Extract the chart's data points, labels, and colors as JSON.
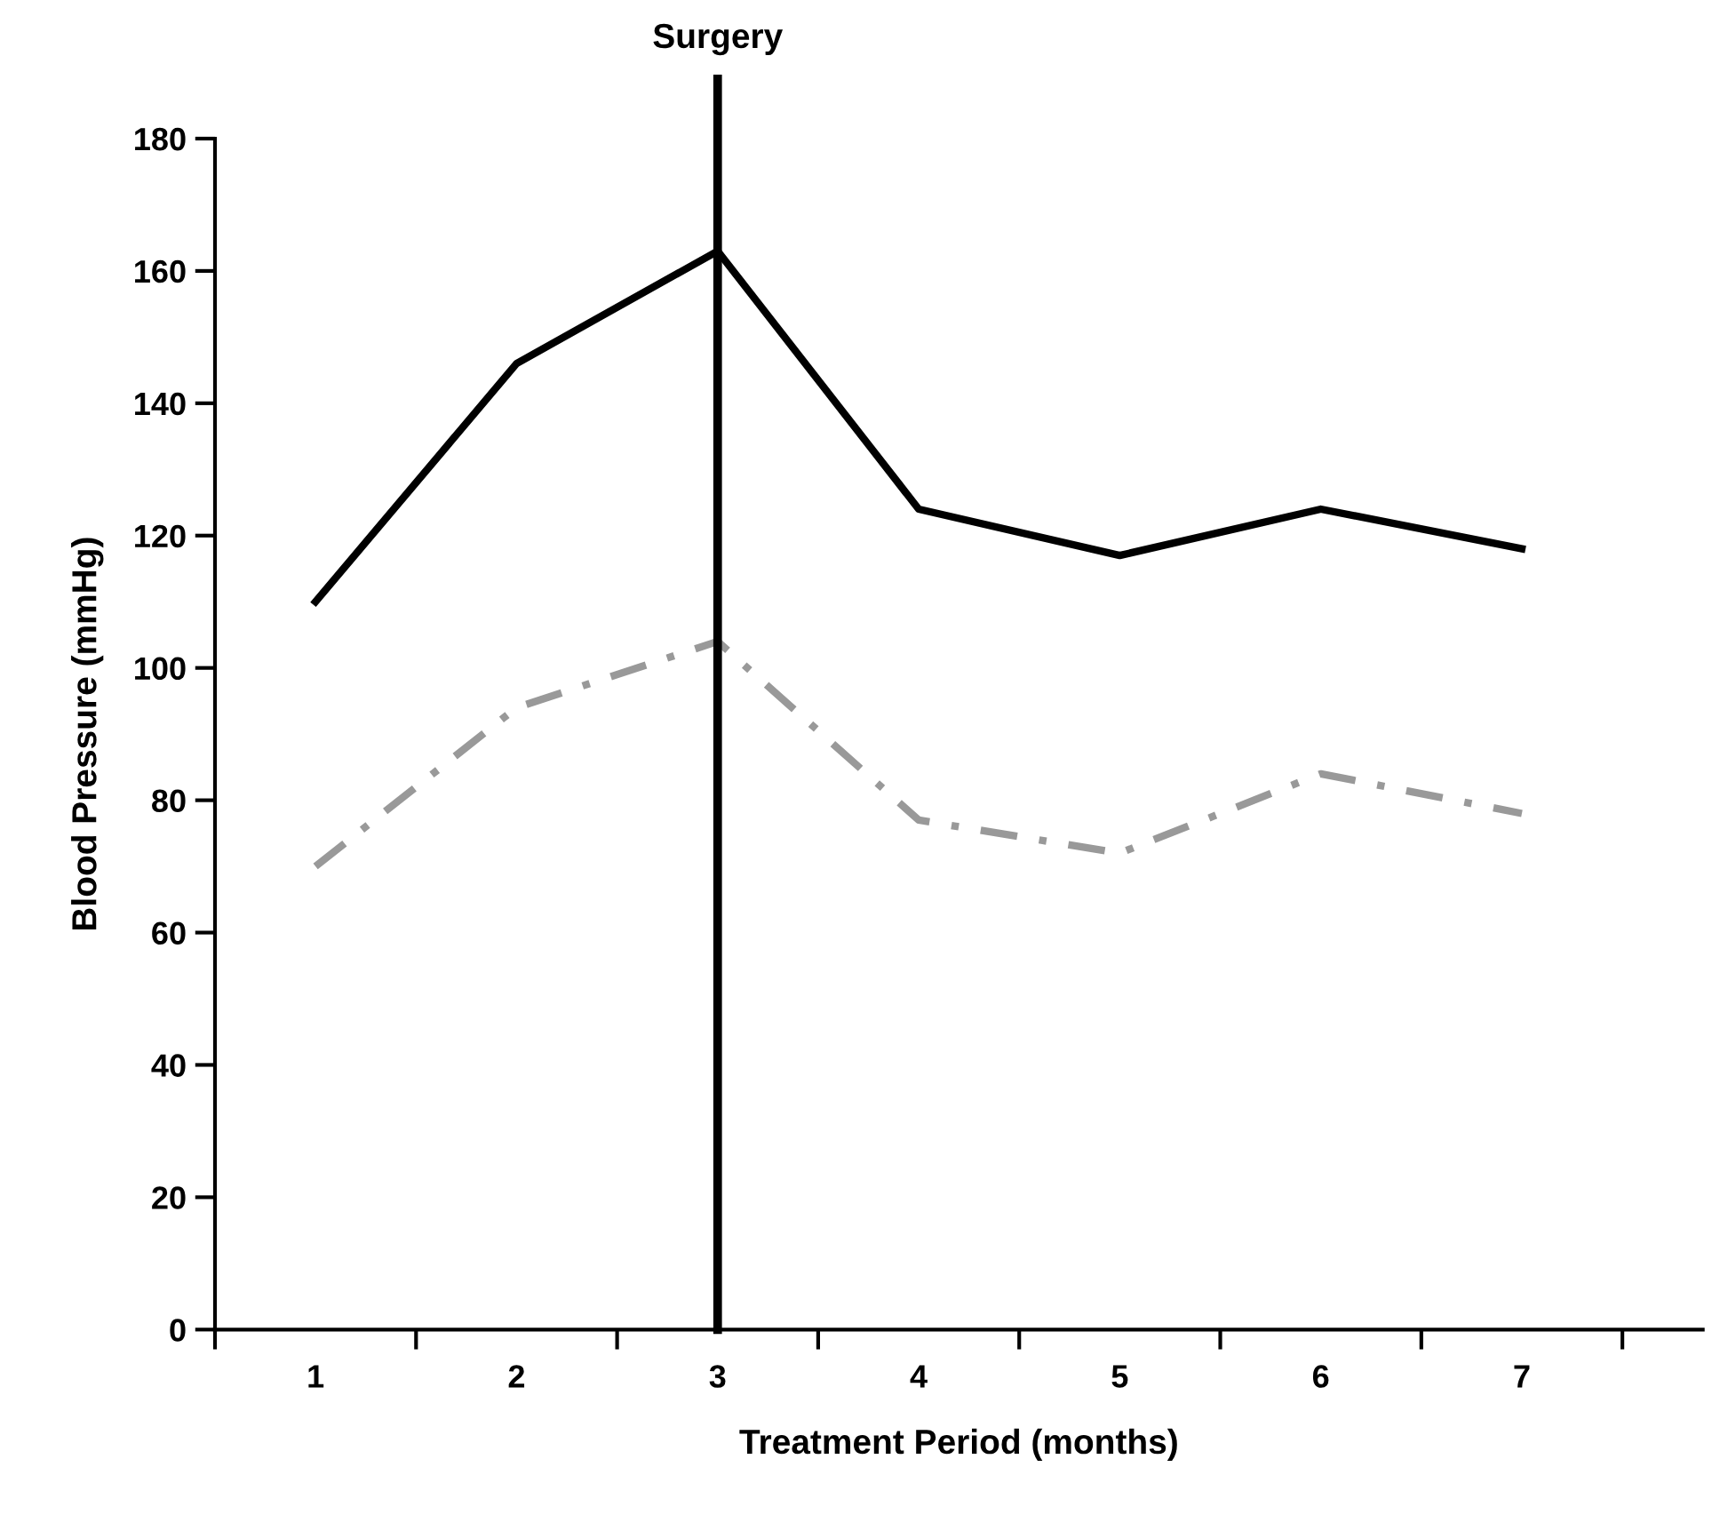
{
  "chart_data": {
    "type": "line",
    "xlabel": "Treatment Period (months)",
    "ylabel": "Blood Pressure (mmHg)",
    "categories": [
      "1",
      "2",
      "3",
      "4",
      "5",
      "6",
      "7"
    ],
    "series": [
      {
        "color": "#000000",
        "line_style": "solid",
        "values": [
          110,
          146,
          163,
          124,
          117,
          124,
          118
        ]
      },
      {
        "color": "#999999",
        "line_style": "dashed",
        "values": [
          70,
          94,
          104,
          77,
          72,
          84,
          78
        ]
      }
    ],
    "ylim": [
      0,
      180
    ],
    "yticks": [
      0,
      20,
      40,
      60,
      80,
      100,
      120,
      140,
      160,
      180
    ],
    "ref_lines": [
      {
        "axis": "x",
        "value": "3",
        "label": "Surgery",
        "color": "#000000"
      }
    ],
    "grid": false,
    "legend": false,
    "marker": "none"
  }
}
